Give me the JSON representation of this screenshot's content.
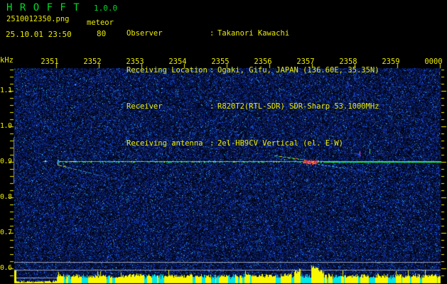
{
  "header": {
    "app_title": "H R O F F T",
    "version": "1.0.0",
    "filename": "2510012350.png",
    "mode": "meteor",
    "datetime": "25.10.01 23:50",
    "count": "80",
    "separator": ":",
    "info_rows": [
      {
        "label": "Observer",
        "value": "Takanori Kawachi"
      },
      {
        "label": "Receiving Location",
        "value": "Ogaki, Gifu, JAPAN (136.60E, 35.35N)"
      },
      {
        "label": "Receiver",
        "value": "R820T2(RTL-SDR) SDR-Sharp 53.1000MHz"
      },
      {
        "label": "Receiving antenna",
        "value": "2el-HB9CV Vertical (el. E-W)"
      }
    ]
  },
  "colors": {
    "title_green": "#00dc28",
    "text_yellow": "#ecec00",
    "background": "#000000",
    "carrier_green": "#2aee46",
    "carrier_cyan": "#00d8c8",
    "event_red": "#ff3340",
    "event_magenta": "#ee44cc",
    "event_orange": "#ff8800",
    "band_yellow": "#f8f800",
    "band_cyan": "#00e8e8",
    "grid_gray": "#9aa0b4",
    "noise_blue": "#2233bb"
  },
  "chart_data": {
    "type": "heatmap",
    "subtype": "radio-meteor-echo-spectrogram",
    "x_axis": {
      "tick_labels": [
        "2351",
        "2352",
        "2353",
        "2354",
        "2355",
        "2356",
        "2357",
        "2358",
        "2359",
        "0000"
      ],
      "start_time": "23:50",
      "end_time": "00:00",
      "minutes_per_division": 1
    },
    "y_axis": {
      "label": "kHz",
      "tick_labels": [
        "1.1",
        "1.0",
        "0.9",
        "0.8",
        "0.7",
        "0.6"
      ],
      "tick_values_khz": [
        1.1,
        1.0,
        0.9,
        0.8,
        0.7,
        0.6
      ],
      "range_khz": [
        0.56,
        1.16
      ],
      "minor_tick_step_khz": 0.02
    },
    "features": {
      "carrier_line": {
        "freq_khz": 0.9,
        "start_min": 1.02,
        "end_min": 10.0
      },
      "pre_carrier_dot": {
        "freq_khz": 0.9,
        "time_min": 0.7
      },
      "trail_left": {
        "start": {
          "min": 1.04,
          "khz": 0.892
        },
        "end": {
          "min": 2.55,
          "khz": 0.846
        }
      },
      "aircraft_approach": {
        "start": {
          "min": 6.1,
          "khz": 0.918
        },
        "end": {
          "min": 6.83,
          "khz": 0.906
        }
      },
      "crossing_event": {
        "center_min": 6.93,
        "center_khz": 0.899,
        "half_width_min": 0.25
      },
      "trail_right": {
        "start": {
          "min": 7.12,
          "khz": 0.894
        },
        "end": {
          "min": 8.45,
          "khz": 0.87
        }
      },
      "spot_magenta": {
        "min": 8.1,
        "khz": 0.925
      },
      "spot_green": {
        "min": 8.33,
        "khz": 0.931
      },
      "freq_window_marker_khz": [
        0.84,
        0.968
      ]
    },
    "level_band": {
      "reference_line_khz": [
        0.618,
        0.596,
        0.574
      ],
      "quiet_until_min": 1.0,
      "hump_center_min": 6.92,
      "spike_at_min": 0.02,
      "trace_colors": [
        "yellow",
        "cyan"
      ]
    }
  }
}
